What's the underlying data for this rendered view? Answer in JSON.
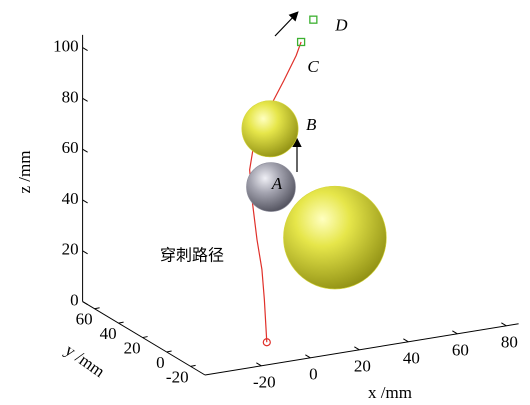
{
  "chart_data": {
    "type": "scatter3d",
    "xlabel": "x /mm",
    "ylabel": "y /mm",
    "zlabel": "z /mm",
    "xlim": [
      -43,
      85
    ],
    "ylim": [
      -32,
      70
    ],
    "zlim": [
      0,
      105
    ],
    "xticks": [
      -20,
      0,
      20,
      40,
      60,
      80
    ],
    "yticks": [
      -20,
      0,
      20,
      40,
      60
    ],
    "zticks": [
      0,
      20,
      40,
      60,
      80,
      100
    ],
    "path": {
      "name": "穿刺路径",
      "color": "#e0302a",
      "x": [
        -7,
        -8,
        -9,
        -11,
        -13,
        -14,
        -12,
        -6.5,
        0,
        5,
        7
      ],
      "y": [
        -10,
        -10,
        -10,
        -10,
        -10,
        -10,
        -10,
        -10,
        -10,
        -10,
        -10
      ],
      "z": [
        1,
        18,
        30,
        42,
        58,
        70,
        81.5,
        92,
        103,
        112,
        117
      ]
    },
    "spheres": [
      {
        "color": "#d6d63a",
        "x": 9,
        "y": 20,
        "z": 74,
        "r": 11.5
      },
      {
        "name": "A",
        "color": "#8e8e9c",
        "x": 9.4,
        "y": 20,
        "z": 51,
        "r": 10
      },
      {
        "color": "#d6d63a",
        "x": 35.5,
        "y": 20,
        "z": 27,
        "r": 21
      }
    ],
    "markers": [
      {
        "name": "C",
        "color": "#3cb030",
        "x": 7,
        "y": -10,
        "z": 117
      },
      {
        "name": "D",
        "color": "#3cb030",
        "x": 12,
        "y": -10,
        "z": 125
      }
    ],
    "annotation": "B"
  }
}
